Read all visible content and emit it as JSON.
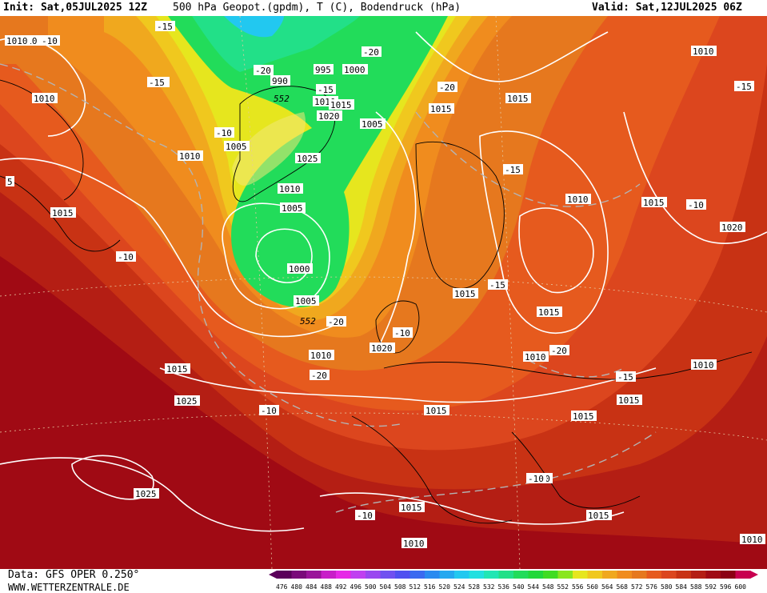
{
  "header": {
    "init": "Init: Sat,05JUL2025 12Z",
    "title": "500 hPa Geopot.(gpdm), T (C), Bodendruck (hPa)",
    "valid": "Valid: Sat,12JUL2025 06Z"
  },
  "footer": {
    "data_source": "Data: GFS OPER 0.250°",
    "website": "WWW.WETTERZENTRALE.DE"
  },
  "colorbar": {
    "ticks": [
      "476",
      "480",
      "484",
      "488",
      "492",
      "496",
      "500",
      "504",
      "508",
      "512",
      "516",
      "520",
      "524",
      "528",
      "532",
      "536",
      "540",
      "544",
      "548",
      "552",
      "556",
      "560",
      "564",
      "568",
      "572",
      "576",
      "580",
      "584",
      "588",
      "592",
      "596",
      "600"
    ],
    "colors": [
      "#5a005a",
      "#7a0a7a",
      "#9a149a",
      "#c81ec8",
      "#e628e6",
      "#c040f0",
      "#9a48f0",
      "#7050f0",
      "#5050f0",
      "#3a6af0",
      "#2a8af0",
      "#24a8f0",
      "#22c8f0",
      "#22e0e0",
      "#22e6b4",
      "#22e088",
      "#22dc5a",
      "#22d83a",
      "#40dc22",
      "#8ae61e",
      "#e6e61e",
      "#f0c81e",
      "#f0a81e",
      "#f08c1e",
      "#e6781e",
      "#e65a1e",
      "#dc461e",
      "#c83214",
      "#b41e14",
      "#a00a14",
      "#8c0014",
      "#c80050"
    ]
  },
  "pressure_labels": [
    "1010",
    "1010",
    "1010",
    "1010",
    "1015",
    "1005",
    "995",
    "1000",
    "990",
    "1010",
    "1015",
    "1020",
    "1005",
    "1025",
    "1010",
    "1005",
    "1000",
    "1005",
    "1015",
    "1010",
    "1015",
    "1020",
    "1015",
    "1015",
    "1010",
    "1020",
    "1015",
    "1025",
    "1015",
    "1010",
    "1015",
    "1015",
    "1010",
    "1025",
    "1015",
    "1010",
    "1015",
    "1010",
    "1015",
    "1010",
    "1010"
  ],
  "temp_labels": [
    "-10",
    "-15",
    "-15",
    "-20",
    "-20",
    "-15",
    "-10",
    "-20",
    "-20",
    "-10",
    "-15",
    "-10",
    "-15",
    "-10",
    "-20",
    "-20",
    "-10",
    "-15",
    "-15",
    "-10",
    "-10",
    "-10",
    "-15",
    "-10",
    "-10"
  ],
  "geopot_labels": [
    "552",
    "552"
  ],
  "edge_labels": [
    "5"
  ]
}
